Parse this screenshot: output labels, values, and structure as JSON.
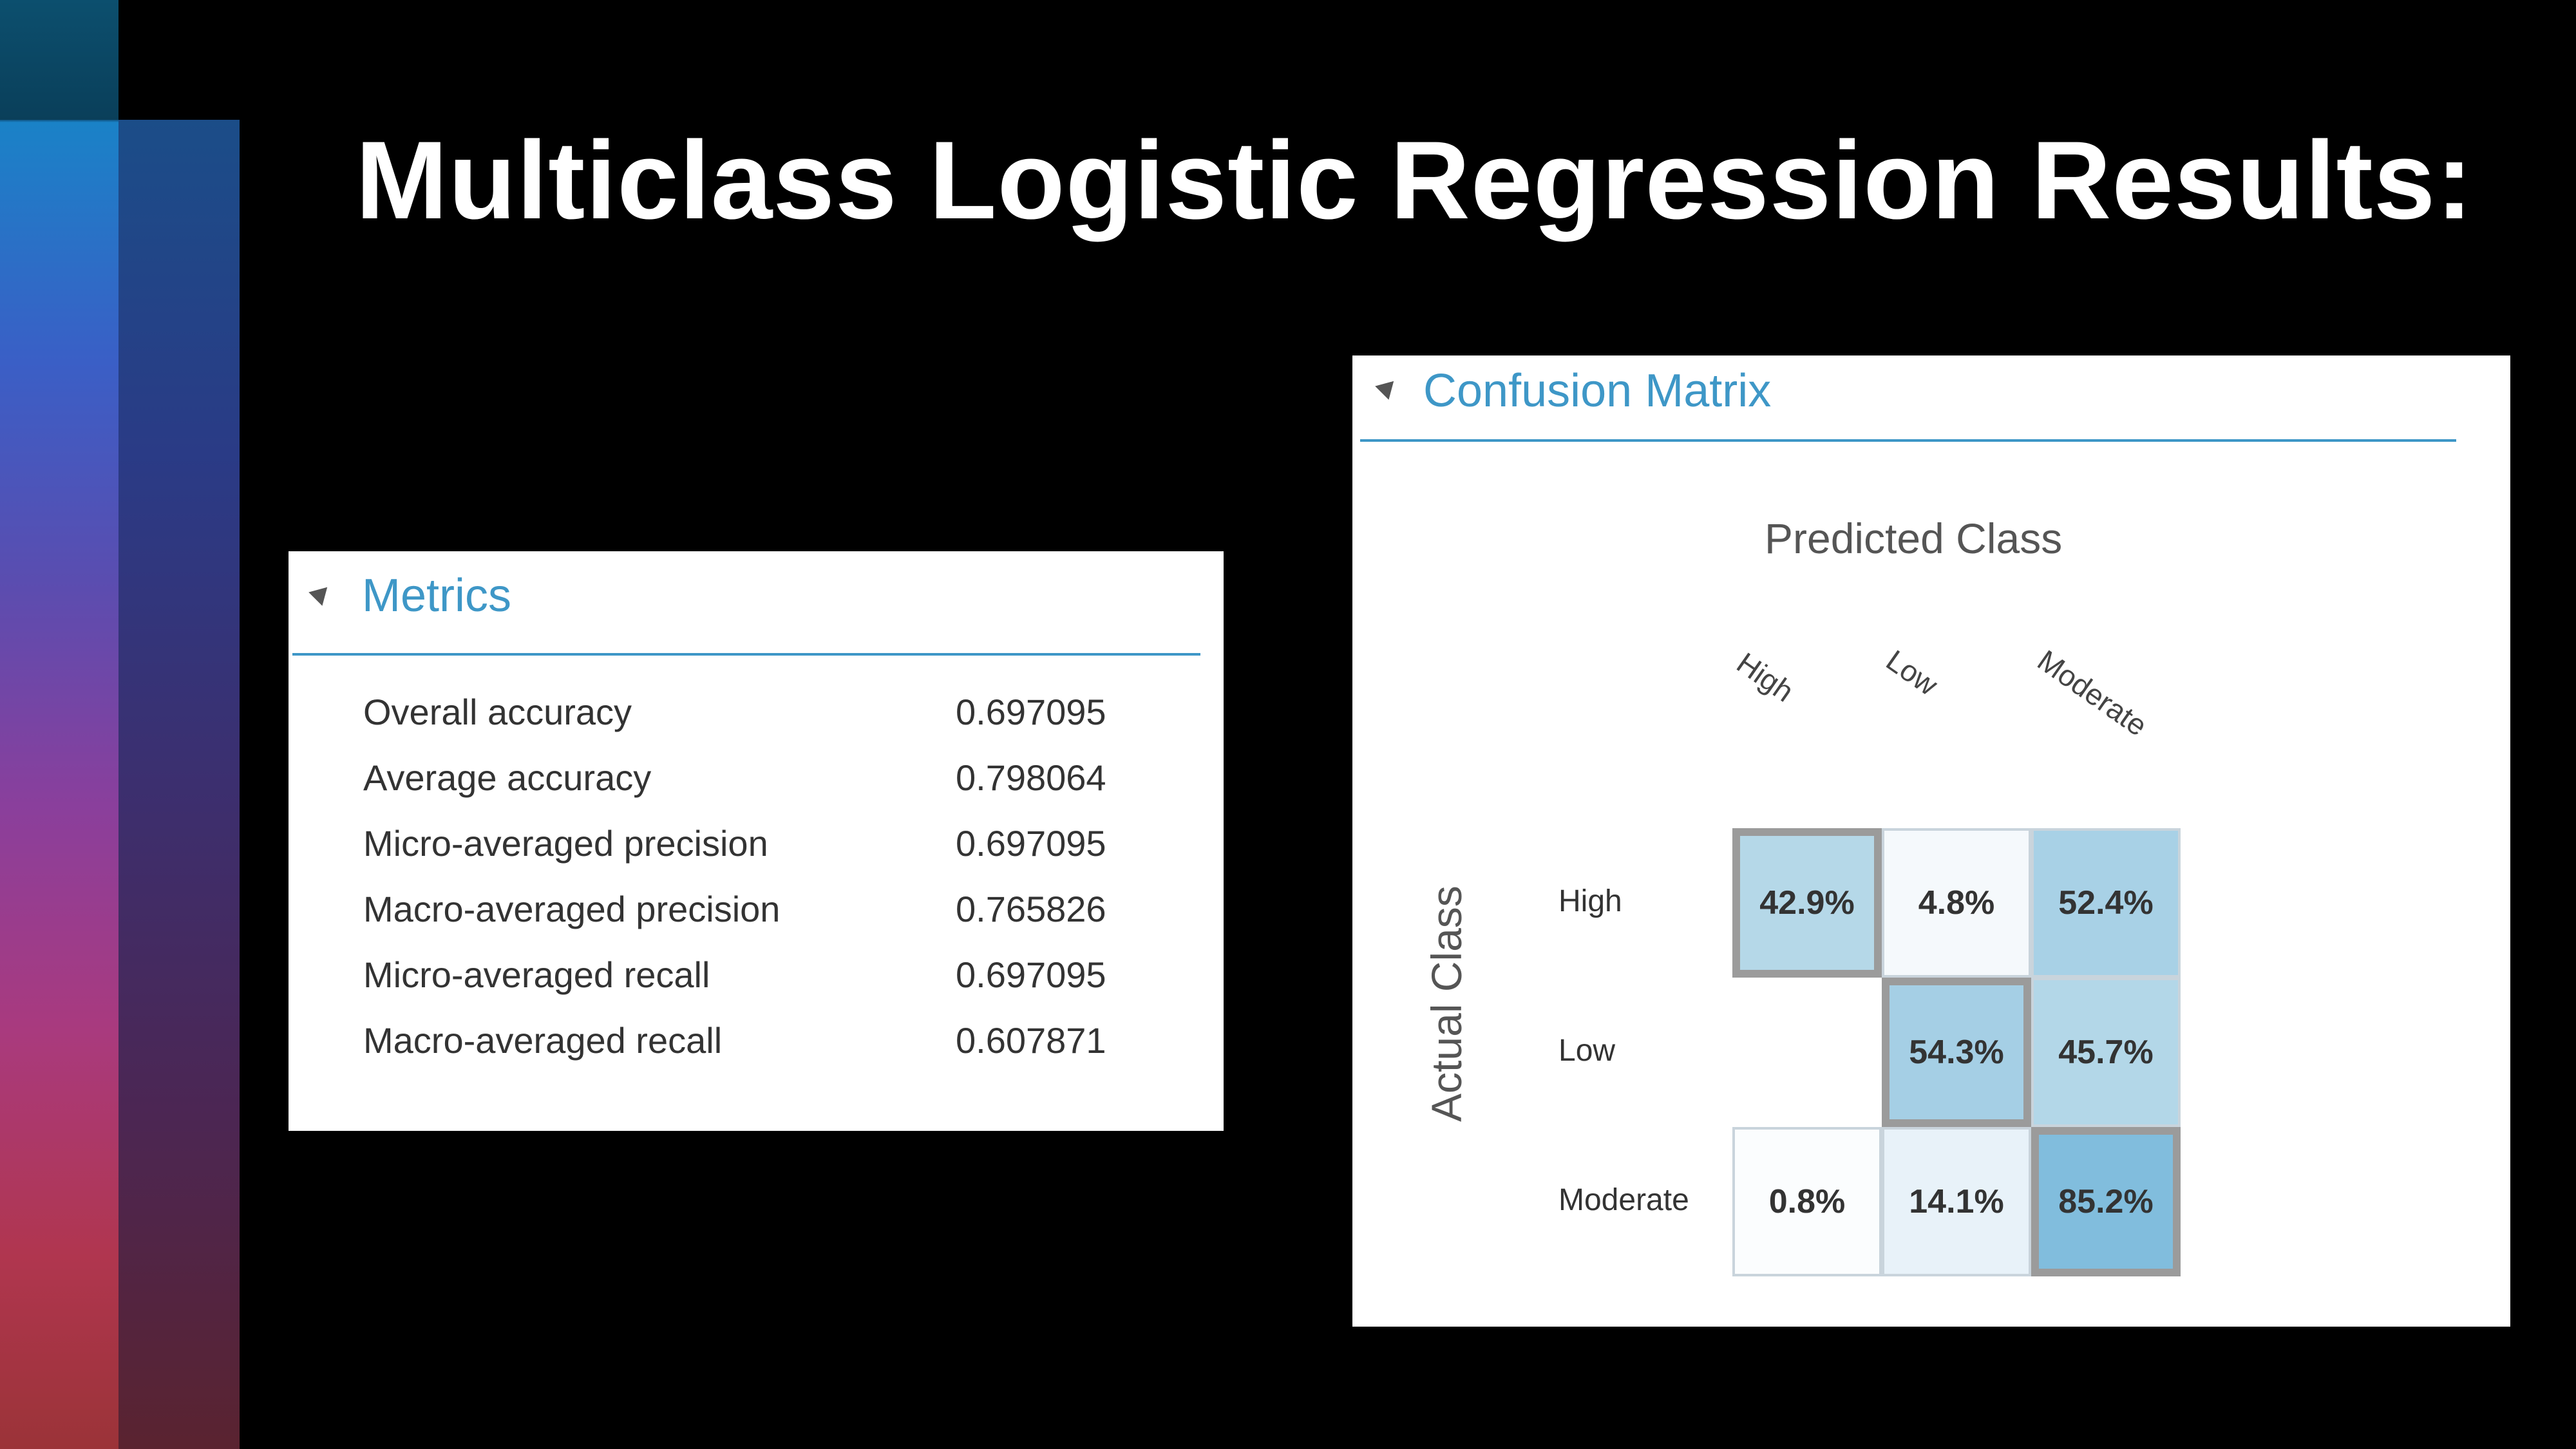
{
  "slide": {
    "title": "Multiclass Logistic Regression Results:"
  },
  "metrics_panel": {
    "title": "Metrics",
    "rows": [
      {
        "label": "Overall accuracy",
        "value": "0.697095"
      },
      {
        "label": "Average accuracy",
        "value": "0.798064"
      },
      {
        "label": "Micro-averaged precision",
        "value": "0.697095"
      },
      {
        "label": "Macro-averaged precision",
        "value": "0.765826"
      },
      {
        "label": "Micro-averaged recall",
        "value": "0.697095"
      },
      {
        "label": "Macro-averaged recall",
        "value": "0.607871"
      }
    ]
  },
  "confusion_panel": {
    "title": "Confusion Matrix",
    "predicted_label": "Predicted Class",
    "actual_label": "Actual Class",
    "columns": [
      "High",
      "Low",
      "Moderate"
    ],
    "rows": [
      "High",
      "Low",
      "Moderate"
    ],
    "cells": [
      [
        {
          "text": "42.9%",
          "value": 42.9,
          "color": "#b5d8e8",
          "highlight": true
        },
        {
          "text": "4.8%",
          "value": 4.8,
          "color": "#f5f9fc",
          "highlight": false
        },
        {
          "text": "52.4%",
          "value": 52.4,
          "color": "#a8d1e6",
          "highlight": false
        }
      ],
      [
        {
          "text": "",
          "value": null,
          "color": "#ffffff",
          "highlight": false
        },
        {
          "text": "54.3%",
          "value": 54.3,
          "color": "#a5cfe5",
          "highlight": true
        },
        {
          "text": "45.7%",
          "value": 45.7,
          "color": "#b3d7e8",
          "highlight": false
        }
      ],
      [
        {
          "text": "0.8%",
          "value": 0.8,
          "color": "#fbfdfe",
          "highlight": false
        },
        {
          "text": "14.1%",
          "value": 14.1,
          "color": "#e8f2f9",
          "highlight": false
        },
        {
          "text": "85.2%",
          "value": 85.2,
          "color": "#81bddd",
          "highlight": true
        }
      ]
    ]
  },
  "colors": {
    "accent": "#3e97c7",
    "background": "#000000"
  }
}
